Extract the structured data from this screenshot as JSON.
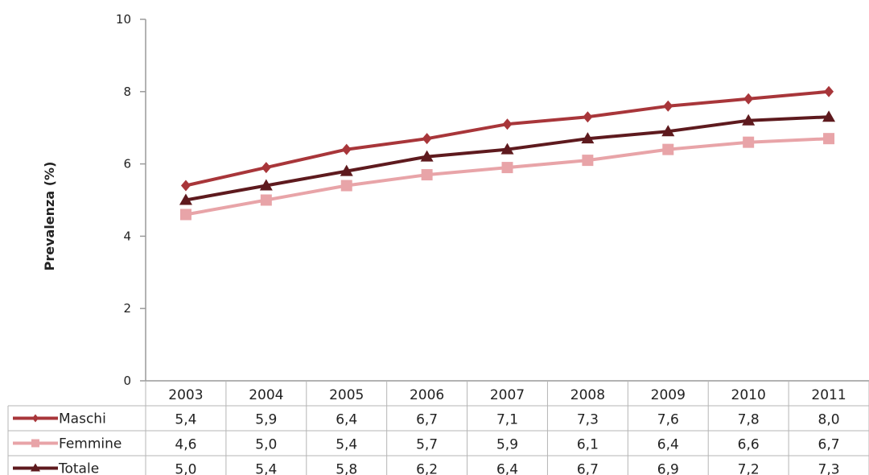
{
  "chart_data": {
    "type": "line",
    "ylabel": "Prevalenza (%)",
    "ylim": [
      0,
      10
    ],
    "yticks": [
      0,
      2,
      4,
      6,
      8,
      10
    ],
    "categories": [
      "2003",
      "2004",
      "2005",
      "2006",
      "2007",
      "2008",
      "2009",
      "2010",
      "2011"
    ],
    "series": [
      {
        "name": "Maschi",
        "marker": "diamond",
        "color": "#a8363a",
        "values": [
          5.4,
          5.9,
          6.4,
          6.7,
          7.1,
          7.3,
          7.6,
          7.8,
          8.0
        ],
        "labels": [
          "5,4",
          "5,9",
          "6,4",
          "6,7",
          "7,1",
          "7,3",
          "7,6",
          "7,8",
          "8,0"
        ]
      },
      {
        "name": "Femmine",
        "marker": "square",
        "color": "#e8a4a8",
        "values": [
          4.6,
          5.0,
          5.4,
          5.7,
          5.9,
          6.1,
          6.4,
          6.6,
          6.7
        ],
        "labels": [
          "4,6",
          "5,0",
          "5,4",
          "5,7",
          "5,9",
          "6,1",
          "6,4",
          "6,6",
          "6,7"
        ]
      },
      {
        "name": "Totale",
        "marker": "triangle",
        "color": "#5e1a1e",
        "values": [
          5.0,
          5.4,
          5.8,
          6.2,
          6.4,
          6.7,
          6.9,
          7.2,
          7.3
        ],
        "labels": [
          "5,0",
          "5,4",
          "5,8",
          "6,2",
          "6,4",
          "6,7",
          "6,9",
          "7,2",
          "7,3"
        ]
      }
    ],
    "legend": "data-table"
  }
}
